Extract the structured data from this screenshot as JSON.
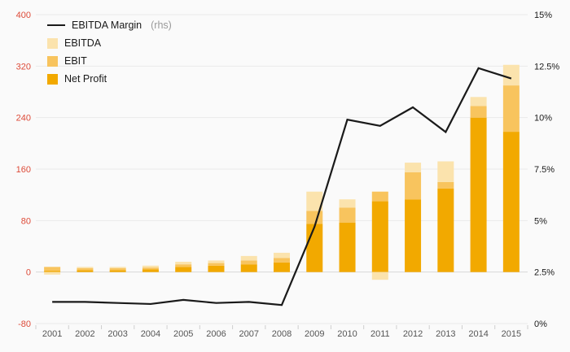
{
  "background": "#fafafa",
  "chart_data": {
    "type": "combo-bar-line",
    "title": "",
    "categories": [
      "2001",
      "2002",
      "2003",
      "2004",
      "2005",
      "2006",
      "2007",
      "2008",
      "2009",
      "2010",
      "2011",
      "2012",
      "2013",
      "2014",
      "2015"
    ],
    "series": [
      {
        "name": "EBITDA Margin",
        "type": "line",
        "axis": "right",
        "color": "#1a1a1a",
        "values": [
          1.05,
          1.05,
          1.0,
          0.95,
          1.15,
          1.0,
          1.05,
          0.9,
          4.7,
          9.9,
          9.6,
          10.5,
          9.3,
          12.4,
          11.9
        ]
      },
      {
        "name": "EBITDA",
        "type": "bar",
        "axis": "left",
        "color": "#fbe3ad",
        "values": [
          4,
          8,
          8,
          10,
          16,
          18,
          25,
          30,
          125,
          113,
          113,
          170,
          172,
          272,
          322
        ]
      },
      {
        "name": "EBIT",
        "type": "bar",
        "axis": "left",
        "color": "#f8c45e",
        "values": [
          8,
          6,
          6,
          7,
          12,
          14,
          18,
          22,
          95,
          100,
          125,
          155,
          140,
          258,
          290
        ]
      },
      {
        "name": "Net Profit",
        "type": "bar",
        "axis": "left",
        "color": "#f2a900",
        "values": [
          2,
          3,
          3,
          4,
          8,
          10,
          12,
          15,
          75,
          77,
          110,
          113,
          130,
          240,
          218
        ]
      }
    ],
    "bar_stacking_note": "bars drawn as stacked increments: Net Profit, EBIT-NetProfit, EBITDA-EBIT; negative increments drawn below zero",
    "left_axis": {
      "min": -80,
      "max": 400,
      "color": "#dd4b39",
      "ticks": [
        {
          "v": 400,
          "label": "400"
        },
        {
          "v": 320,
          "label": "320"
        },
        {
          "v": 240,
          "label": "240"
        },
        {
          "v": 160,
          "label": "160"
        },
        {
          "v": 80,
          "label": "80"
        },
        {
          "v": 0,
          "label": "0"
        },
        {
          "v": -80,
          "label": "-80"
        }
      ]
    },
    "right_axis": {
      "min": 0,
      "max": 15,
      "color": "#1a1a1a",
      "ticks": [
        {
          "v": 15,
          "label": "15%"
        },
        {
          "v": 12.5,
          "label": "12.5%"
        },
        {
          "v": 10,
          "label": "10%"
        },
        {
          "v": 7.5,
          "label": "7.5%"
        },
        {
          "v": 5,
          "label": "5%"
        },
        {
          "v": 2.5,
          "label": "2.5%"
        },
        {
          "v": 0,
          "label": "0%"
        }
      ]
    },
    "grid": {
      "color": "#eaeaea",
      "zero_line_color": "#d8d8d8",
      "tick_color": "#cfcfcf",
      "x_label_color": "#555555"
    },
    "legend": [
      {
        "label": "EBITDA Margin",
        "suffix": "(rhs)",
        "swatch": "line",
        "color": "#1a1a1a"
      },
      {
        "label": "EBITDA",
        "suffix": "",
        "swatch": "box",
        "color": "#fbe3ad"
      },
      {
        "label": "EBIT",
        "suffix": "",
        "swatch": "box",
        "color": "#f8c45e"
      },
      {
        "label": "Net Profit",
        "suffix": "",
        "swatch": "box",
        "color": "#f2a900"
      }
    ]
  }
}
